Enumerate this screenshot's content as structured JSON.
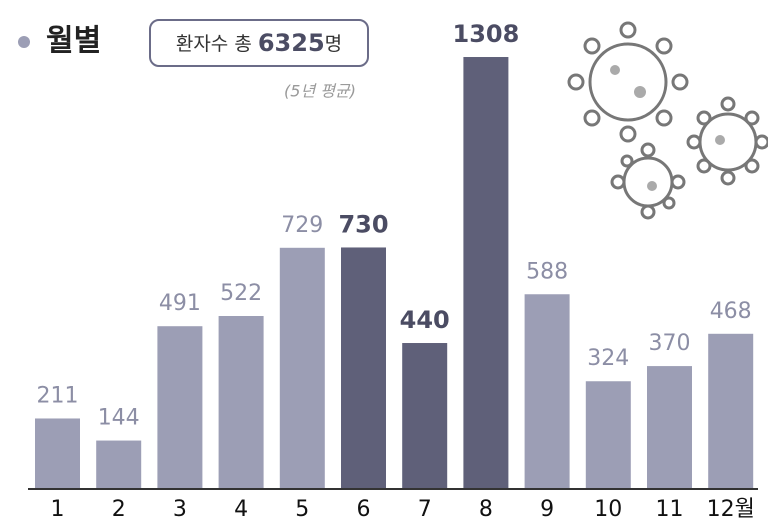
{
  "chart_data": {
    "type": "bar",
    "title": "월별",
    "total_label": "환자수 총",
    "total_value": 6325,
    "total_unit": "명",
    "subtitle": "(5년 평균)",
    "categories": [
      "1",
      "2",
      "3",
      "4",
      "5",
      "6",
      "7",
      "8",
      "9",
      "10",
      "11",
      "12월"
    ],
    "values": [
      211,
      144,
      491,
      522,
      729,
      730,
      440,
      1308,
      588,
      324,
      370,
      468
    ],
    "color": "#9c9eb5",
    "colors": [
      "#9c9eb5",
      "#9c9eb5",
      "#9c9eb5",
      "#9c9eb5",
      "#9c9eb5",
      "#5f6079",
      "#5f6079",
      "#5f6079",
      "#9c9eb5",
      "#9c9eb5",
      "#9c9eb5",
      "#9c9eb5"
    ]
  }
}
